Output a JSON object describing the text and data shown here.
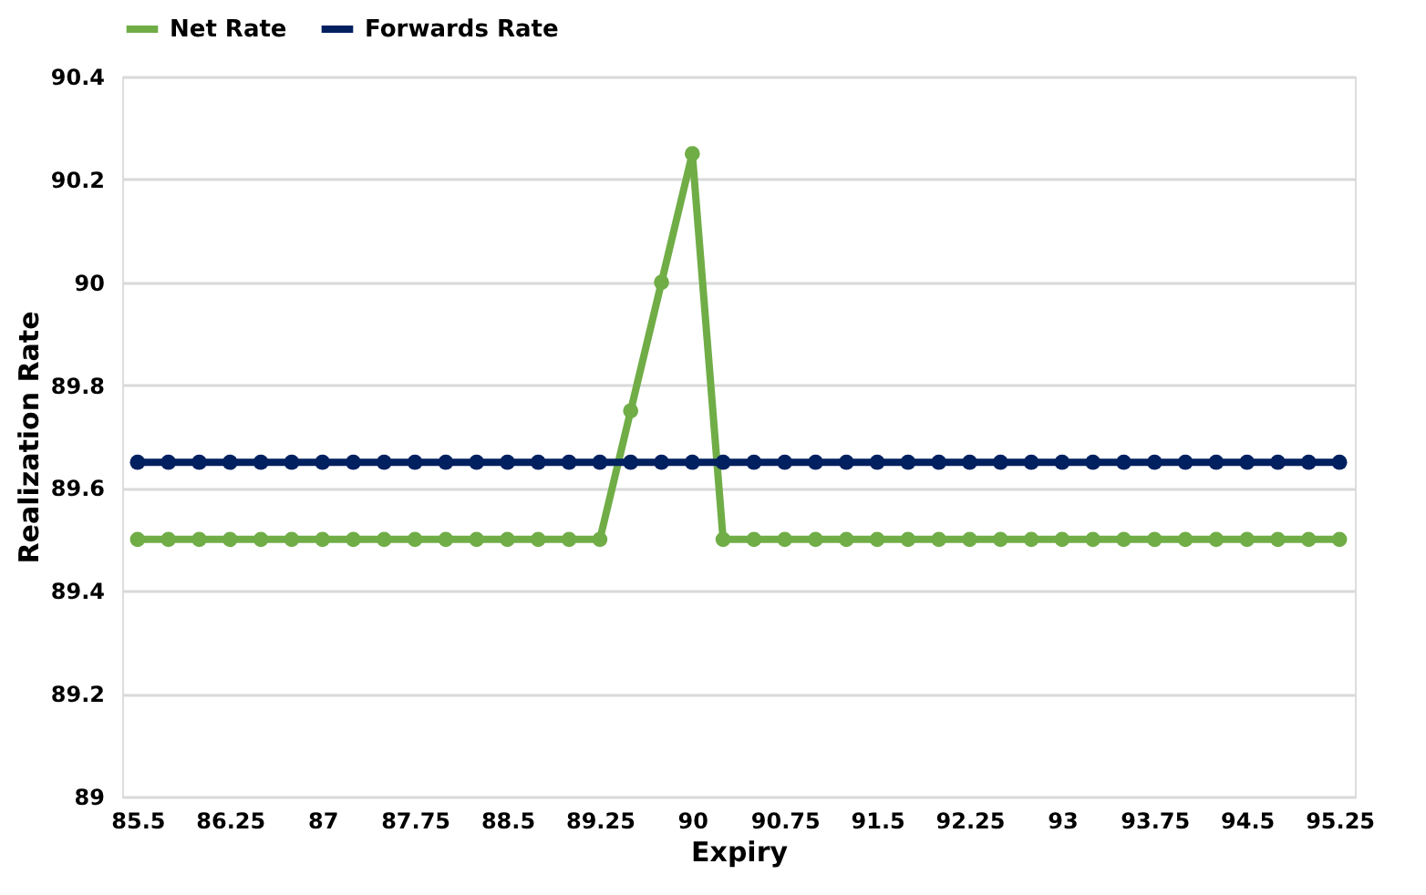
{
  "chart_data": {
    "type": "line",
    "xlabel": "Expiry",
    "ylabel": "Realization Rate",
    "categories": [
      "85.5",
      null,
      null,
      "86.25",
      null,
      null,
      "87",
      null,
      null,
      "87.75",
      null,
      null,
      "88.5",
      null,
      null,
      "89.25",
      null,
      null,
      "90",
      null,
      null,
      "90.75",
      null,
      null,
      "91.5",
      null,
      null,
      "92.25",
      null,
      null,
      "93",
      null,
      null,
      "93.75",
      null,
      null,
      "94.5",
      null,
      null,
      "95.25"
    ],
    "series": [
      {
        "name": "Net Rate",
        "color": "#70ad47",
        "values": [
          89.5,
          89.5,
          89.5,
          89.5,
          89.5,
          89.5,
          89.5,
          89.5,
          89.5,
          89.5,
          89.5,
          89.5,
          89.5,
          89.5,
          89.5,
          89.5,
          89.75,
          90,
          90.25,
          89.5,
          89.5,
          89.5,
          89.5,
          89.5,
          89.5,
          89.5,
          89.5,
          89.5,
          89.5,
          89.5,
          89.5,
          89.5,
          89.5,
          89.5,
          89.5,
          89.5,
          89.5,
          89.5,
          89.5,
          89.5
        ]
      },
      {
        "name": "Forwards Rate",
        "color": "#002060",
        "values": [
          89.65,
          89.65,
          89.65,
          89.65,
          89.65,
          89.65,
          89.65,
          89.65,
          89.65,
          89.65,
          89.65,
          89.65,
          89.65,
          89.65,
          89.65,
          89.65,
          89.65,
          89.65,
          89.65,
          89.65,
          89.65,
          89.65,
          89.65,
          89.65,
          89.65,
          89.65,
          89.65,
          89.65,
          89.65,
          89.65,
          89.65,
          89.65,
          89.65,
          89.65,
          89.65,
          89.65,
          89.65,
          89.65,
          89.65,
          89.65
        ]
      }
    ],
    "ylim": [
      89,
      90.4
    ],
    "yticks": [
      89,
      89.2,
      89.4,
      89.6,
      89.8,
      90,
      90.2,
      90.4
    ],
    "grid": "y",
    "legend": "top",
    "marker": "circle",
    "line_style": "solid"
  }
}
